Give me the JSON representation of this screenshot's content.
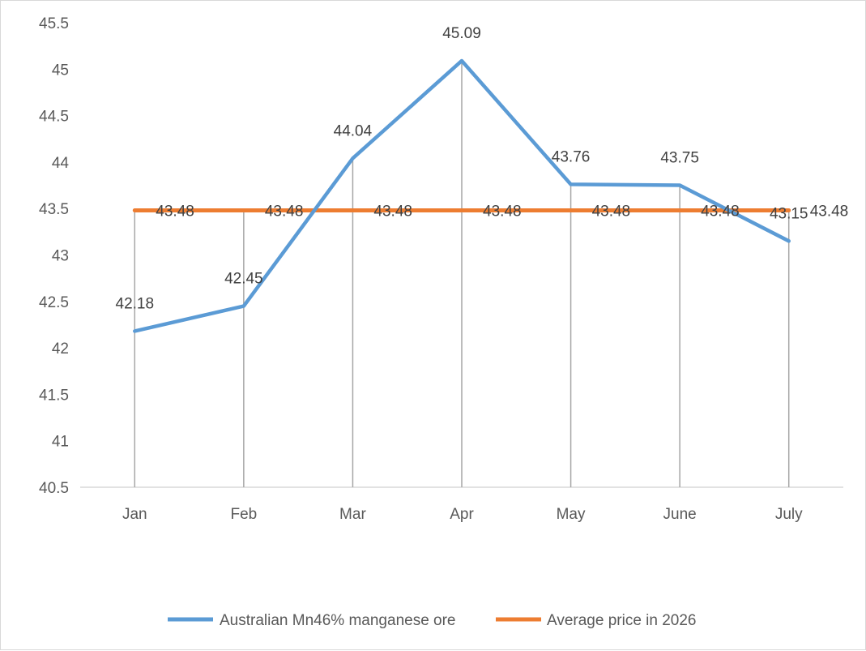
{
  "chart_data": {
    "type": "line",
    "categories": [
      "Jan",
      "Feb",
      "Mar",
      "Apr",
      "May",
      "June",
      "July"
    ],
    "series": [
      {
        "name": "Australian Mn46% manganese ore",
        "color": "#5b9bd5",
        "values": [
          42.18,
          42.45,
          44.04,
          45.09,
          43.76,
          43.75,
          43.15
        ],
        "labels": [
          "42.18",
          "42.45",
          "44.04",
          "45.09",
          "43.76",
          "43.75",
          "43.15"
        ]
      },
      {
        "name": "Average price in 2026",
        "color": "#ed7d31",
        "values": [
          43.48,
          43.48,
          43.48,
          43.48,
          43.48,
          43.48,
          43.48
        ],
        "labels": [
          "43.48",
          "43.48",
          "43.48",
          "43.48",
          "43.48",
          "43.48",
          "43.48"
        ]
      }
    ],
    "yticks": [
      "40.5",
      "41",
      "41.5",
      "42",
      "42.5",
      "43",
      "43.5",
      "44",
      "44.5",
      "45",
      "45.5"
    ],
    "ylim": [
      40.5,
      45.5
    ],
    "drop_lines": true,
    "grid": false,
    "legend": "bottom"
  }
}
